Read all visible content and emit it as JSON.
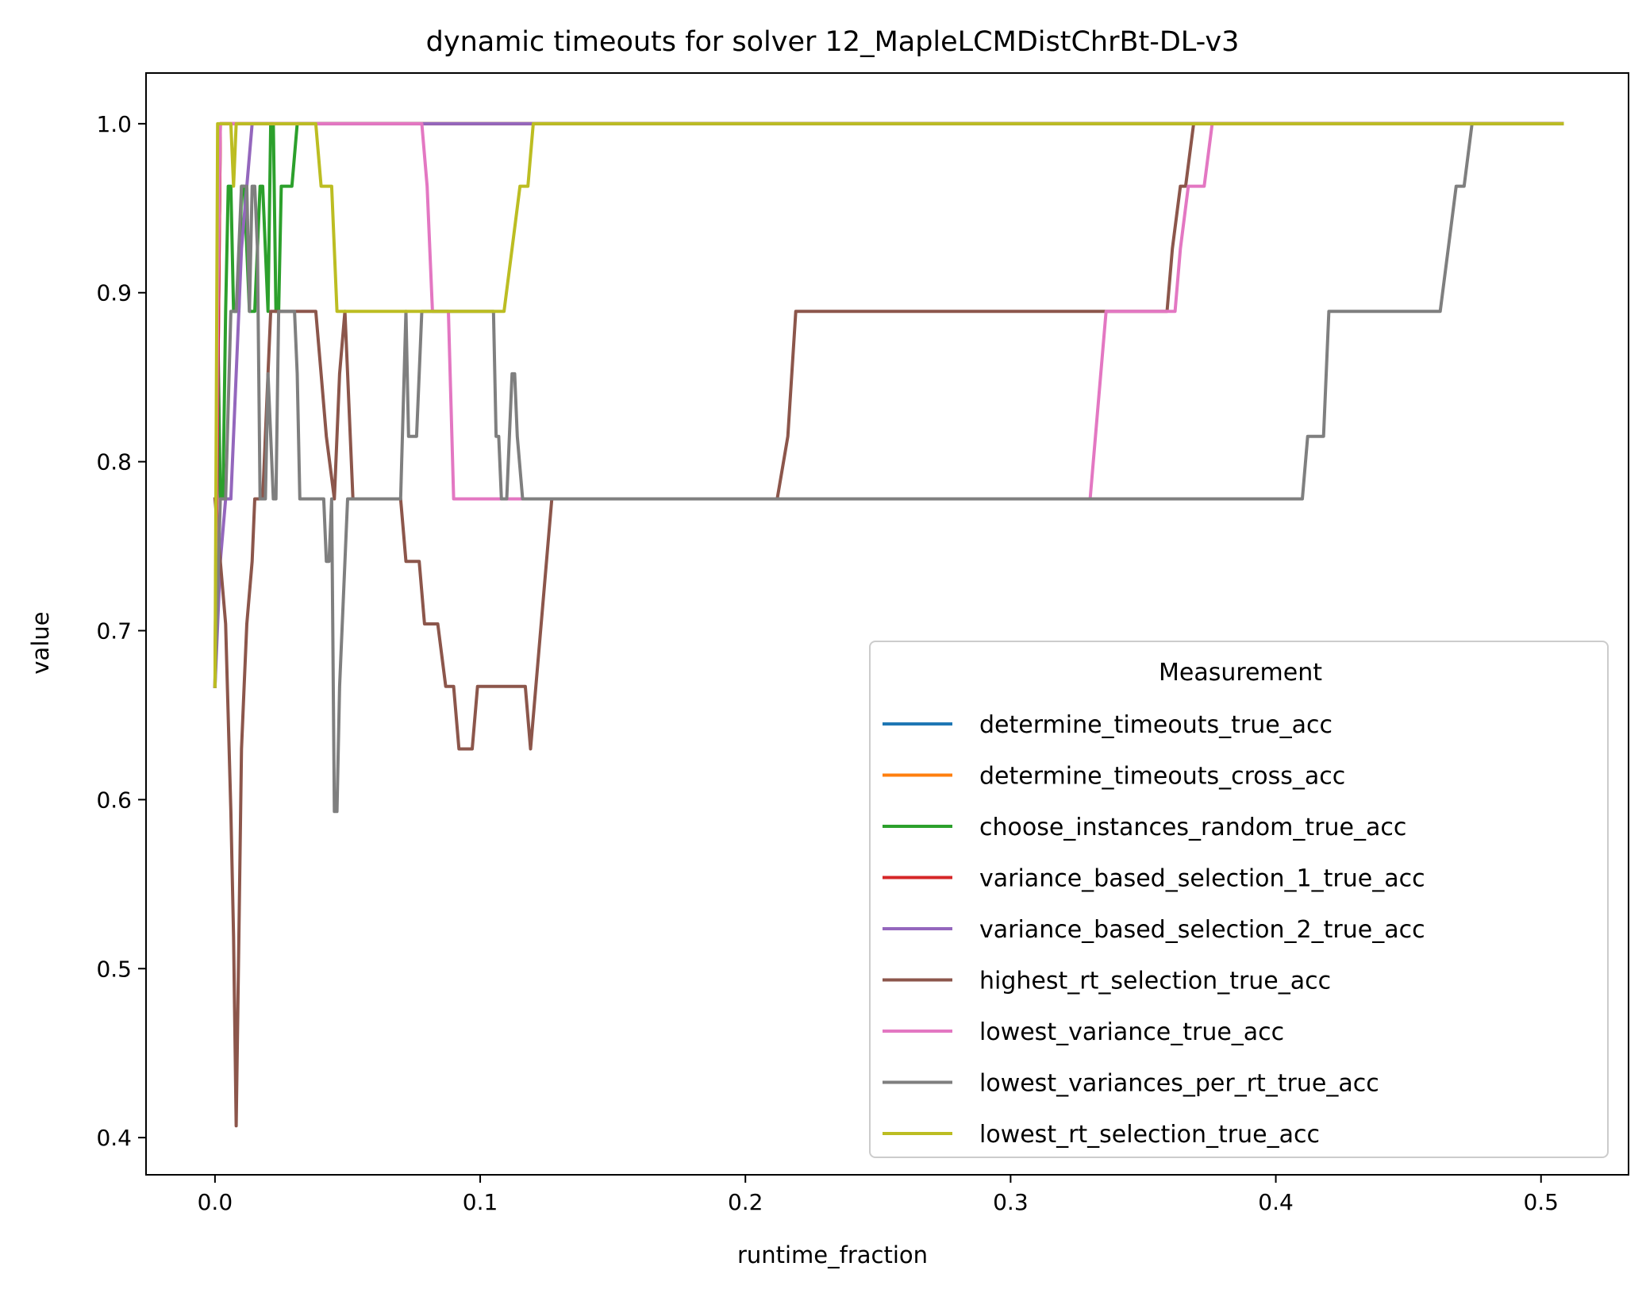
{
  "chart_data": {
    "type": "line",
    "title": "dynamic timeouts for solver 12_MapleLCMDistChrBt-DL-v3",
    "xlabel": "runtime_fraction",
    "ylabel": "value",
    "xlim": [
      -0.026,
      0.533
    ],
    "ylim": [
      0.378,
      1.03
    ],
    "xticks": [
      0.0,
      0.1,
      0.2,
      0.3,
      0.4,
      0.5
    ],
    "xtick_labels": [
      "0.0",
      "0.1",
      "0.2",
      "0.3",
      "0.4",
      "0.5"
    ],
    "yticks": [
      0.4,
      0.5,
      0.6,
      0.7,
      0.8,
      0.9,
      1.0
    ],
    "ytick_labels": [
      "0.4",
      "0.5",
      "0.6",
      "0.7",
      "0.8",
      "0.9",
      "1.0"
    ],
    "grid": false,
    "legend": {
      "title": "Measurement",
      "placement": "lower-right"
    },
    "series": [
      {
        "name": "determine_timeouts_true_acc",
        "color": "#1f77b4",
        "x": [
          0,
          0.002,
          0.508
        ],
        "y": [
          0.667,
          1.0,
          1.0
        ]
      },
      {
        "name": "determine_timeouts_cross_acc",
        "color": "#ff7f0e",
        "x": [
          0,
          0.002,
          0.508
        ],
        "y": [
          0.667,
          1.0,
          1.0
        ]
      },
      {
        "name": "choose_instances_random_true_acc",
        "color": "#2ca02c",
        "x": [
          0,
          0.001,
          0.002,
          0.003,
          0.004,
          0.005,
          0.006,
          0.007,
          0.009,
          0.01,
          0.011,
          0.013,
          0.015,
          0.017,
          0.018,
          0.02,
          0.021,
          0.022,
          0.023,
          0.024,
          0.025,
          0.026,
          0.027,
          0.029,
          0.031,
          0.032,
          0.508
        ],
        "y": [
          0.667,
          0.889,
          0.778,
          0.778,
          0.889,
          0.963,
          0.963,
          0.889,
          0.889,
          0.963,
          0.963,
          0.889,
          0.889,
          0.963,
          0.963,
          0.889,
          1.0,
          1.0,
          0.889,
          0.889,
          0.963,
          0.963,
          0.963,
          0.963,
          1.0,
          1.0,
          1.0
        ]
      },
      {
        "name": "variance_based_selection_1_true_acc",
        "color": "#d62728",
        "x": [
          0,
          0.002,
          0.508
        ],
        "y": [
          0.667,
          1.0,
          1.0
        ]
      },
      {
        "name": "variance_based_selection_2_true_acc",
        "color": "#9467bd",
        "x": [
          0,
          0.002,
          0.004,
          0.006,
          0.008,
          0.01,
          0.012,
          0.014,
          0.12,
          0.508
        ],
        "y": [
          0.667,
          0.741,
          0.778,
          0.778,
          0.852,
          0.926,
          0.963,
          1.0,
          1.0,
          1.0
        ]
      },
      {
        "name": "highest_rt_selection_true_acc",
        "color": "#8c564b",
        "x": [
          0,
          0.002,
          0.004,
          0.006,
          0.007,
          0.008,
          0.009,
          0.01,
          0.011,
          0.012,
          0.014,
          0.015,
          0.018,
          0.02,
          0.021,
          0.022,
          0.025,
          0.03,
          0.038,
          0.04,
          0.042,
          0.045,
          0.047,
          0.049,
          0.05,
          0.052,
          0.068,
          0.07,
          0.072,
          0.075,
          0.077,
          0.079,
          0.082,
          0.084,
          0.087,
          0.09,
          0.092,
          0.095,
          0.097,
          0.099,
          0.102,
          0.105,
          0.107,
          0.115,
          0.117,
          0.119,
          0.121,
          0.123,
          0.125,
          0.127,
          0.129,
          0.212,
          0.216,
          0.219,
          0.221,
          0.23,
          0.359,
          0.361,
          0.364,
          0.366,
          0.369,
          0.508
        ],
        "y": [
          0.778,
          0.741,
          0.704,
          0.593,
          0.519,
          0.407,
          0.519,
          0.63,
          0.667,
          0.704,
          0.741,
          0.778,
          0.778,
          0.852,
          0.889,
          0.889,
          0.889,
          0.889,
          0.889,
          0.852,
          0.815,
          0.778,
          0.852,
          0.889,
          0.852,
          0.778,
          0.778,
          0.778,
          0.741,
          0.741,
          0.741,
          0.704,
          0.704,
          0.704,
          0.667,
          0.667,
          0.63,
          0.63,
          0.63,
          0.667,
          0.667,
          0.667,
          0.667,
          0.667,
          0.667,
          0.63,
          0.667,
          0.704,
          0.741,
          0.778,
          0.778,
          0.778,
          0.815,
          0.889,
          0.889,
          0.889,
          0.889,
          0.926,
          0.963,
          0.963,
          1.0,
          1.0
        ]
      },
      {
        "name": "lowest_variance_true_acc",
        "color": "#e377c2",
        "x": [
          0,
          0.001,
          0.002,
          0.003,
          0.004,
          0.04,
          0.078,
          0.08,
          0.082,
          0.086,
          0.088,
          0.09,
          0.11,
          0.33,
          0.332,
          0.334,
          0.336,
          0.338,
          0.34,
          0.345,
          0.362,
          0.364,
          0.367,
          0.37,
          0.373,
          0.376,
          0.508
        ],
        "y": [
          0.667,
          0.889,
          1.0,
          1.0,
          1.0,
          1.0,
          1.0,
          0.963,
          0.889,
          0.889,
          0.889,
          0.778,
          0.778,
          0.778,
          0.815,
          0.852,
          0.889,
          0.889,
          0.889,
          0.889,
          0.889,
          0.926,
          0.963,
          0.963,
          0.963,
          1.0,
          1.0
        ]
      },
      {
        "name": "lowest_variances_per_rt_true_acc",
        "color": "#7f7f7f",
        "x": [
          0,
          0.002,
          0.004,
          0.006,
          0.008,
          0.01,
          0.012,
          0.013,
          0.014,
          0.015,
          0.016,
          0.017,
          0.018,
          0.019,
          0.02,
          0.021,
          0.022,
          0.023,
          0.024,
          0.025,
          0.026,
          0.027,
          0.028,
          0.029,
          0.03,
          0.031,
          0.032,
          0.034,
          0.036,
          0.038,
          0.04,
          0.041,
          0.042,
          0.043,
          0.044,
          0.045,
          0.046,
          0.047,
          0.05,
          0.07,
          0.072,
          0.073,
          0.074,
          0.076,
          0.078,
          0.08,
          0.082,
          0.084,
          0.105,
          0.106,
          0.107,
          0.108,
          0.11,
          0.112,
          0.113,
          0.114,
          0.116,
          0.118,
          0.12,
          0.41,
          0.412,
          0.414,
          0.418,
          0.42,
          0.422,
          0.462,
          0.465,
          0.468,
          0.471,
          0.474,
          0.508
        ],
        "y": [
          0.667,
          0.778,
          0.778,
          0.889,
          0.889,
          0.963,
          0.963,
          0.889,
          0.963,
          0.963,
          0.926,
          0.778,
          0.778,
          0.778,
          0.852,
          0.815,
          0.778,
          0.778,
          0.889,
          0.889,
          0.889,
          0.889,
          0.889,
          0.889,
          0.889,
          0.852,
          0.778,
          0.778,
          0.778,
          0.778,
          0.778,
          0.778,
          0.741,
          0.741,
          0.778,
          0.593,
          0.593,
          0.667,
          0.778,
          0.778,
          0.889,
          0.815,
          0.815,
          0.815,
          0.889,
          0.889,
          0.889,
          0.889,
          0.889,
          0.815,
          0.815,
          0.778,
          0.778,
          0.852,
          0.852,
          0.815,
          0.778,
          0.778,
          0.778,
          0.778,
          0.815,
          0.815,
          0.815,
          0.889,
          0.889,
          0.889,
          0.926,
          0.963,
          0.963,
          1.0,
          1.0
        ]
      },
      {
        "name": "lowest_rt_selection_true_acc",
        "color": "#bcbd22",
        "x": [
          0,
          0.001,
          0.002,
          0.004,
          0.005,
          0.006,
          0.007,
          0.008,
          0.009,
          0.01,
          0.036,
          0.038,
          0.04,
          0.042,
          0.044,
          0.046,
          0.107,
          0.109,
          0.112,
          0.115,
          0.118,
          0.12,
          0.508
        ],
        "y": [
          0.667,
          1.0,
          1.0,
          1.0,
          1.0,
          1.0,
          0.963,
          1.0,
          1.0,
          1.0,
          1.0,
          1.0,
          0.963,
          0.963,
          0.963,
          0.889,
          0.889,
          0.889,
          0.926,
          0.963,
          0.963,
          1.0,
          1.0
        ]
      }
    ]
  }
}
